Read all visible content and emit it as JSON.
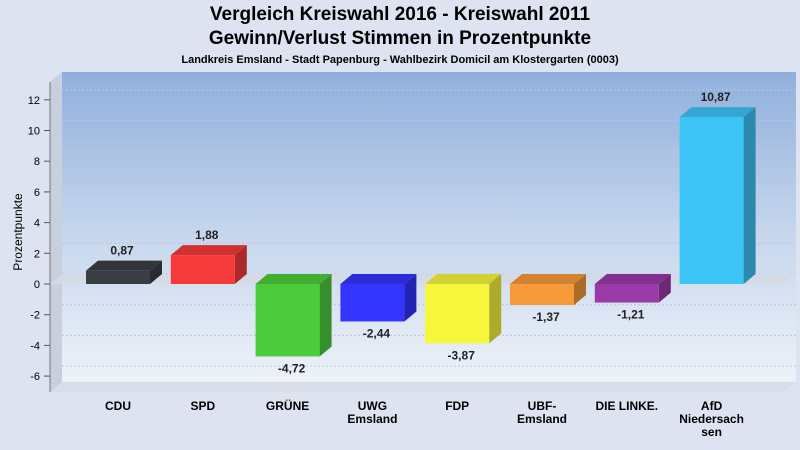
{
  "chart_data": {
    "type": "bar",
    "title": "Vergleich Kreiswahl 2016 - Kreiswahl 2011",
    "title_line2": "Gewinn/Verlust Stimmen in Prozentpunkte",
    "subtitle": "Landkreis Emsland - Stadt Papenburg - Wahlbezirk Domicil am Klostergarten (0003)",
    "ylabel": "Prozentpunkte",
    "xlabel": "",
    "ylim": [
      -6,
      12
    ],
    "yticks": [
      "-6",
      "-4",
      "-2",
      "0",
      "2",
      "4",
      "6",
      "8",
      "10",
      "12"
    ],
    "categories": [
      [
        "CDU"
      ],
      [
        "SPD"
      ],
      [
        "GRÜNE"
      ],
      [
        "UWG",
        "Emsland"
      ],
      [
        "FDP"
      ],
      [
        "UBF-",
        "Emsland"
      ],
      [
        "DIE LINKE."
      ],
      [
        "AfD",
        "Niedersach",
        "sen"
      ]
    ],
    "values": [
      0.87,
      1.88,
      -4.72,
      -2.44,
      -3.87,
      -1.37,
      -1.21,
      10.87
    ],
    "value_labels": [
      "0,87",
      "1,88",
      "-4,72",
      "-2,44",
      "-3,87",
      "-1,37",
      "-1,21",
      "10,87"
    ],
    "colors": [
      "#3a3d44",
      "#f63a3a",
      "#4ccc3c",
      "#3434ff",
      "#f6f63c",
      "#f69a3a",
      "#9a3aa8",
      "#3cc4f6"
    ],
    "grid": true
  }
}
